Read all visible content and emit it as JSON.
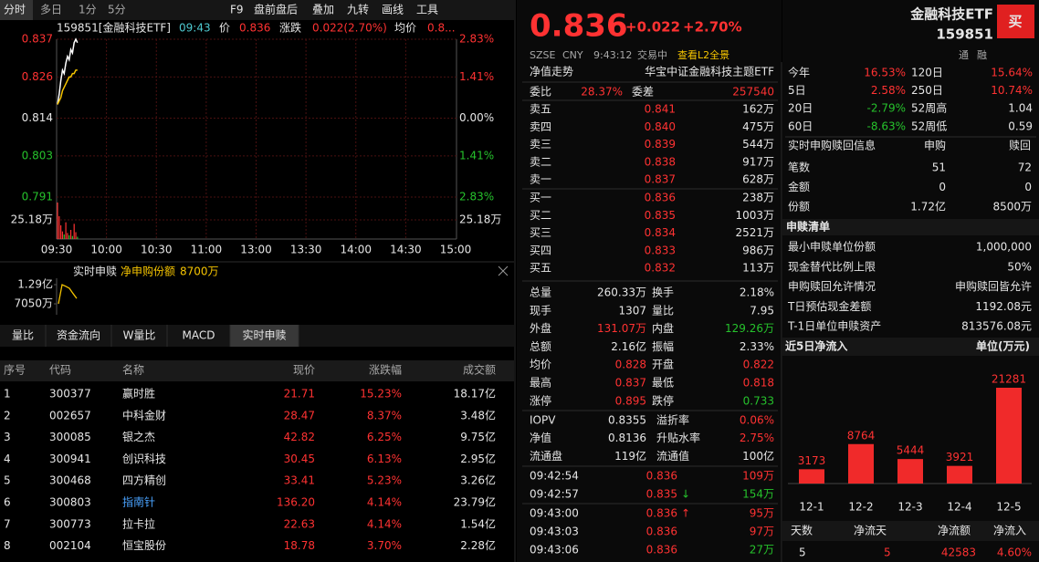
{
  "toolbar": {
    "tabs": [
      "分时",
      "多日",
      "1分",
      "5分"
    ],
    "tools": [
      "F9",
      "盘前盘后",
      "叠加",
      "九转",
      "画线",
      "工具"
    ]
  },
  "chart_header": {
    "code": "159851[金融科技ETF]",
    "time": "09:43",
    "price_label": "价",
    "price": "0.836",
    "change_label": "涨跌",
    "change": "0.022(2.70%)",
    "avg_label": "均价",
    "avg": "0.8..."
  },
  "price_chart": {
    "ylim": [
      0.791,
      0.837
    ],
    "yticks": [
      0.837,
      0.826,
      0.814,
      0.803,
      0.791
    ],
    "pct_ticks": [
      "2.83%",
      "1.41%",
      "0.00%",
      "1.41%",
      "2.83%"
    ],
    "xticks": [
      "09:30",
      "10:00",
      "10:30",
      "11:00",
      "13:00",
      "13:30",
      "14:00",
      "14:30",
      "15:00"
    ],
    "price": [
      0.818,
      0.821,
      0.825,
      0.828,
      0.827,
      0.83,
      0.832,
      0.831,
      0.834,
      0.833,
      0.836,
      0.837,
      0.836
    ],
    "avg": [
      0.818,
      0.819,
      0.82,
      0.822,
      0.823,
      0.824,
      0.825,
      0.826,
      0.826,
      0.827,
      0.827,
      0.828,
      0.828
    ],
    "volume_tick": {
      "value": 25.18,
      "label": "25.18万"
    },
    "volume": [
      48,
      30,
      18,
      10,
      6,
      22,
      8,
      5,
      12,
      4,
      20,
      9,
      3
    ]
  },
  "sub_chart": {
    "title": "实时申赎",
    "series_name": "净申购份额",
    "value": "8700万",
    "yticks": [
      {
        "value": 12900,
        "label": "1.29亿"
      },
      {
        "value": 7050,
        "label": "7050万"
      }
    ],
    "values": [
      7050,
      12900,
      12400,
      11800,
      10200,
      8700
    ]
  },
  "bottom_tabs": [
    "量比",
    "资金流向",
    "W量比",
    "MACD",
    "实时申赎"
  ],
  "stock_table": {
    "headers": [
      "序号",
      "代码",
      "名称",
      "现价",
      "涨跌幅",
      "成交额"
    ],
    "rows": [
      [
        "1",
        "300377",
        "赢时胜",
        "21.71",
        "15.23%",
        "18.17亿"
      ],
      [
        "2",
        "002657",
        "中科金财",
        "28.47",
        "8.37%",
        "3.48亿"
      ],
      [
        "3",
        "300085",
        "银之杰",
        "42.82",
        "6.25%",
        "9.75亿"
      ],
      [
        "4",
        "300941",
        "创识科技",
        "30.45",
        "6.13%",
        "2.95亿"
      ],
      [
        "5",
        "300468",
        "四方精创",
        "33.41",
        "5.23%",
        "3.26亿"
      ],
      [
        "6",
        "300803",
        "指南针",
        "136.20",
        "4.14%",
        "23.79亿"
      ],
      [
        "7",
        "300773",
        "拉卡拉",
        "22.63",
        "4.14%",
        "1.54亿"
      ],
      [
        "8",
        "002104",
        "恒宝股份",
        "18.78",
        "3.70%",
        "2.28亿"
      ]
    ]
  },
  "quote": {
    "price": "0.836",
    "change": "+0.022",
    "change_pct": "+2.70%",
    "name": "金融科技ETF",
    "code": "159851",
    "buy_button": "买",
    "exchange": "SZSE",
    "currency": "CNY",
    "time": "9:43:12",
    "status": "交易中",
    "l2_link": "查看L2全景",
    "tags": [
      "通",
      "融"
    ]
  },
  "nav": {
    "label": "净值走势",
    "fund_name": "华宝中证金融科技主题ETF"
  },
  "order_ratio": [
    "委比",
    "28.37%",
    "委差",
    "257540"
  ],
  "asks": [
    [
      "卖五",
      "0.841",
      "162万"
    ],
    [
      "卖四",
      "0.840",
      "475万"
    ],
    [
      "卖三",
      "0.839",
      "544万"
    ],
    [
      "卖二",
      "0.838",
      "917万"
    ],
    [
      "卖一",
      "0.837",
      "628万"
    ]
  ],
  "bids": [
    [
      "买一",
      "0.836",
      "238万"
    ],
    [
      "买二",
      "0.835",
      "1003万"
    ],
    [
      "买三",
      "0.834",
      "2521万"
    ],
    [
      "买四",
      "0.833",
      "986万"
    ],
    [
      "买五",
      "0.832",
      "113万"
    ]
  ],
  "stats": [
    [
      "总量",
      "260.33万",
      "换手",
      "2.18%"
    ],
    [
      "现手",
      "1307",
      "量比",
      "7.95"
    ],
    [
      "外盘",
      "131.07万",
      "内盘",
      "129.26万"
    ],
    [
      "总额",
      "2.16亿",
      "振幅",
      "2.33%"
    ],
    [
      "均价",
      "0.828",
      "开盘",
      "0.822"
    ],
    [
      "最高",
      "0.837",
      "最低",
      "0.818"
    ],
    [
      "涨停",
      "0.895",
      "跌停",
      "0.733"
    ]
  ],
  "fund_stats": [
    [
      "IOPV",
      "0.8355",
      "溢折率",
      "0.06%"
    ],
    [
      "净值",
      "0.8136",
      "升贴水率",
      "2.75%"
    ],
    [
      "流通盘",
      "119亿",
      "流通值",
      "100亿"
    ]
  ],
  "trades": [
    [
      "09:42:54",
      "0.836",
      "109万"
    ],
    [
      "09:42:57",
      "0.835",
      "154万",
      "↓"
    ],
    [
      "09:43:00",
      "0.836",
      "95万",
      "↑"
    ],
    [
      "09:43:03",
      "0.836",
      "97万"
    ],
    [
      "09:43:06",
      "0.836",
      "27万"
    ]
  ],
  "performance": [
    [
      "今年",
      "16.53%",
      "120日",
      "15.64%"
    ],
    [
      "5日",
      "2.58%",
      "250日",
      "10.74%"
    ],
    [
      "20日",
      "-2.79%",
      "52周高",
      "1.04"
    ],
    [
      "60日",
      "-8.63%",
      "52周低",
      "0.59"
    ]
  ],
  "subscription": {
    "title": "实时申购赎回信息",
    "headers": [
      "申购",
      "赎回"
    ],
    "rows": [
      [
        "笔数",
        "51",
        "72"
      ],
      [
        "金额",
        "0",
        "0"
      ],
      [
        "份额",
        "1.72亿",
        "8500万"
      ]
    ]
  },
  "redemption_list": {
    "title": "申赎清单",
    "rows": [
      [
        "最小申赎单位份额",
        "1,000,000"
      ],
      [
        "现金替代比例上限",
        "50%"
      ],
      [
        "申购赎回允许情况",
        "申购赎回皆允许"
      ],
      [
        "T日预估现金差额",
        "1192.08元"
      ],
      [
        "T-1日单位申赎资产",
        "813576.08元"
      ]
    ]
  },
  "chart_data": {
    "type": "bar",
    "title": "近5日净流入",
    "unit": "单位(万元)",
    "categories": [
      "12-1",
      "12-2",
      "12-3",
      "12-4",
      "12-5"
    ],
    "values": [
      3173,
      8764,
      5444,
      3921,
      21281
    ],
    "color": "#f02a2a"
  },
  "flow_summary": {
    "headers": [
      "天数",
      "净流天",
      "净流额",
      "净流入"
    ],
    "row": [
      "5",
      "5",
      "42583",
      "4.60%"
    ]
  }
}
